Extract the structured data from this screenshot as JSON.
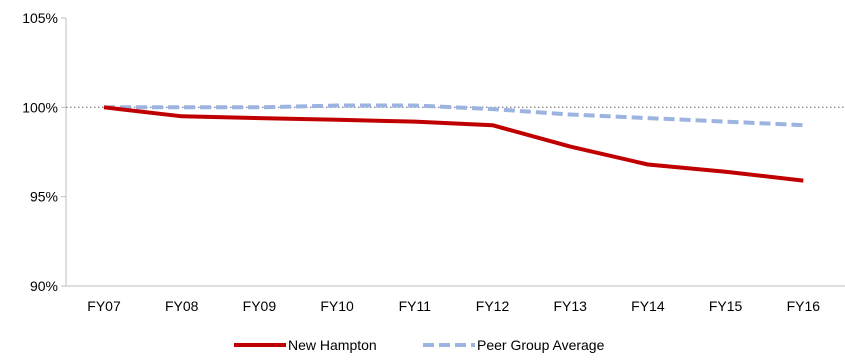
{
  "chart_data": {
    "type": "line",
    "categories": [
      "FY07",
      "FY08",
      "FY09",
      "FY10",
      "FY11",
      "FY12",
      "FY13",
      "FY14",
      "FY15",
      "FY16"
    ],
    "ylim": [
      90,
      105
    ],
    "y_ticks": [
      90,
      95,
      100,
      105
    ],
    "y_tick_labels": [
      "90%",
      "95%",
      "100%",
      "105%"
    ],
    "reference_line": 100,
    "grid": false,
    "legend_position": "bottom",
    "series": [
      {
        "name": "New Hampton",
        "color": "#C00000",
        "style": "solid",
        "values": [
          100.0,
          99.5,
          99.4,
          99.3,
          99.2,
          99.0,
          97.8,
          96.8,
          96.4,
          95.9
        ]
      },
      {
        "name": "Peer Group Average",
        "color": "#9DB4E0",
        "style": "dashed",
        "values": [
          100.0,
          100.0,
          100.0,
          100.1,
          100.1,
          99.9,
          99.6,
          99.4,
          99.2,
          99.0
        ]
      }
    ]
  }
}
